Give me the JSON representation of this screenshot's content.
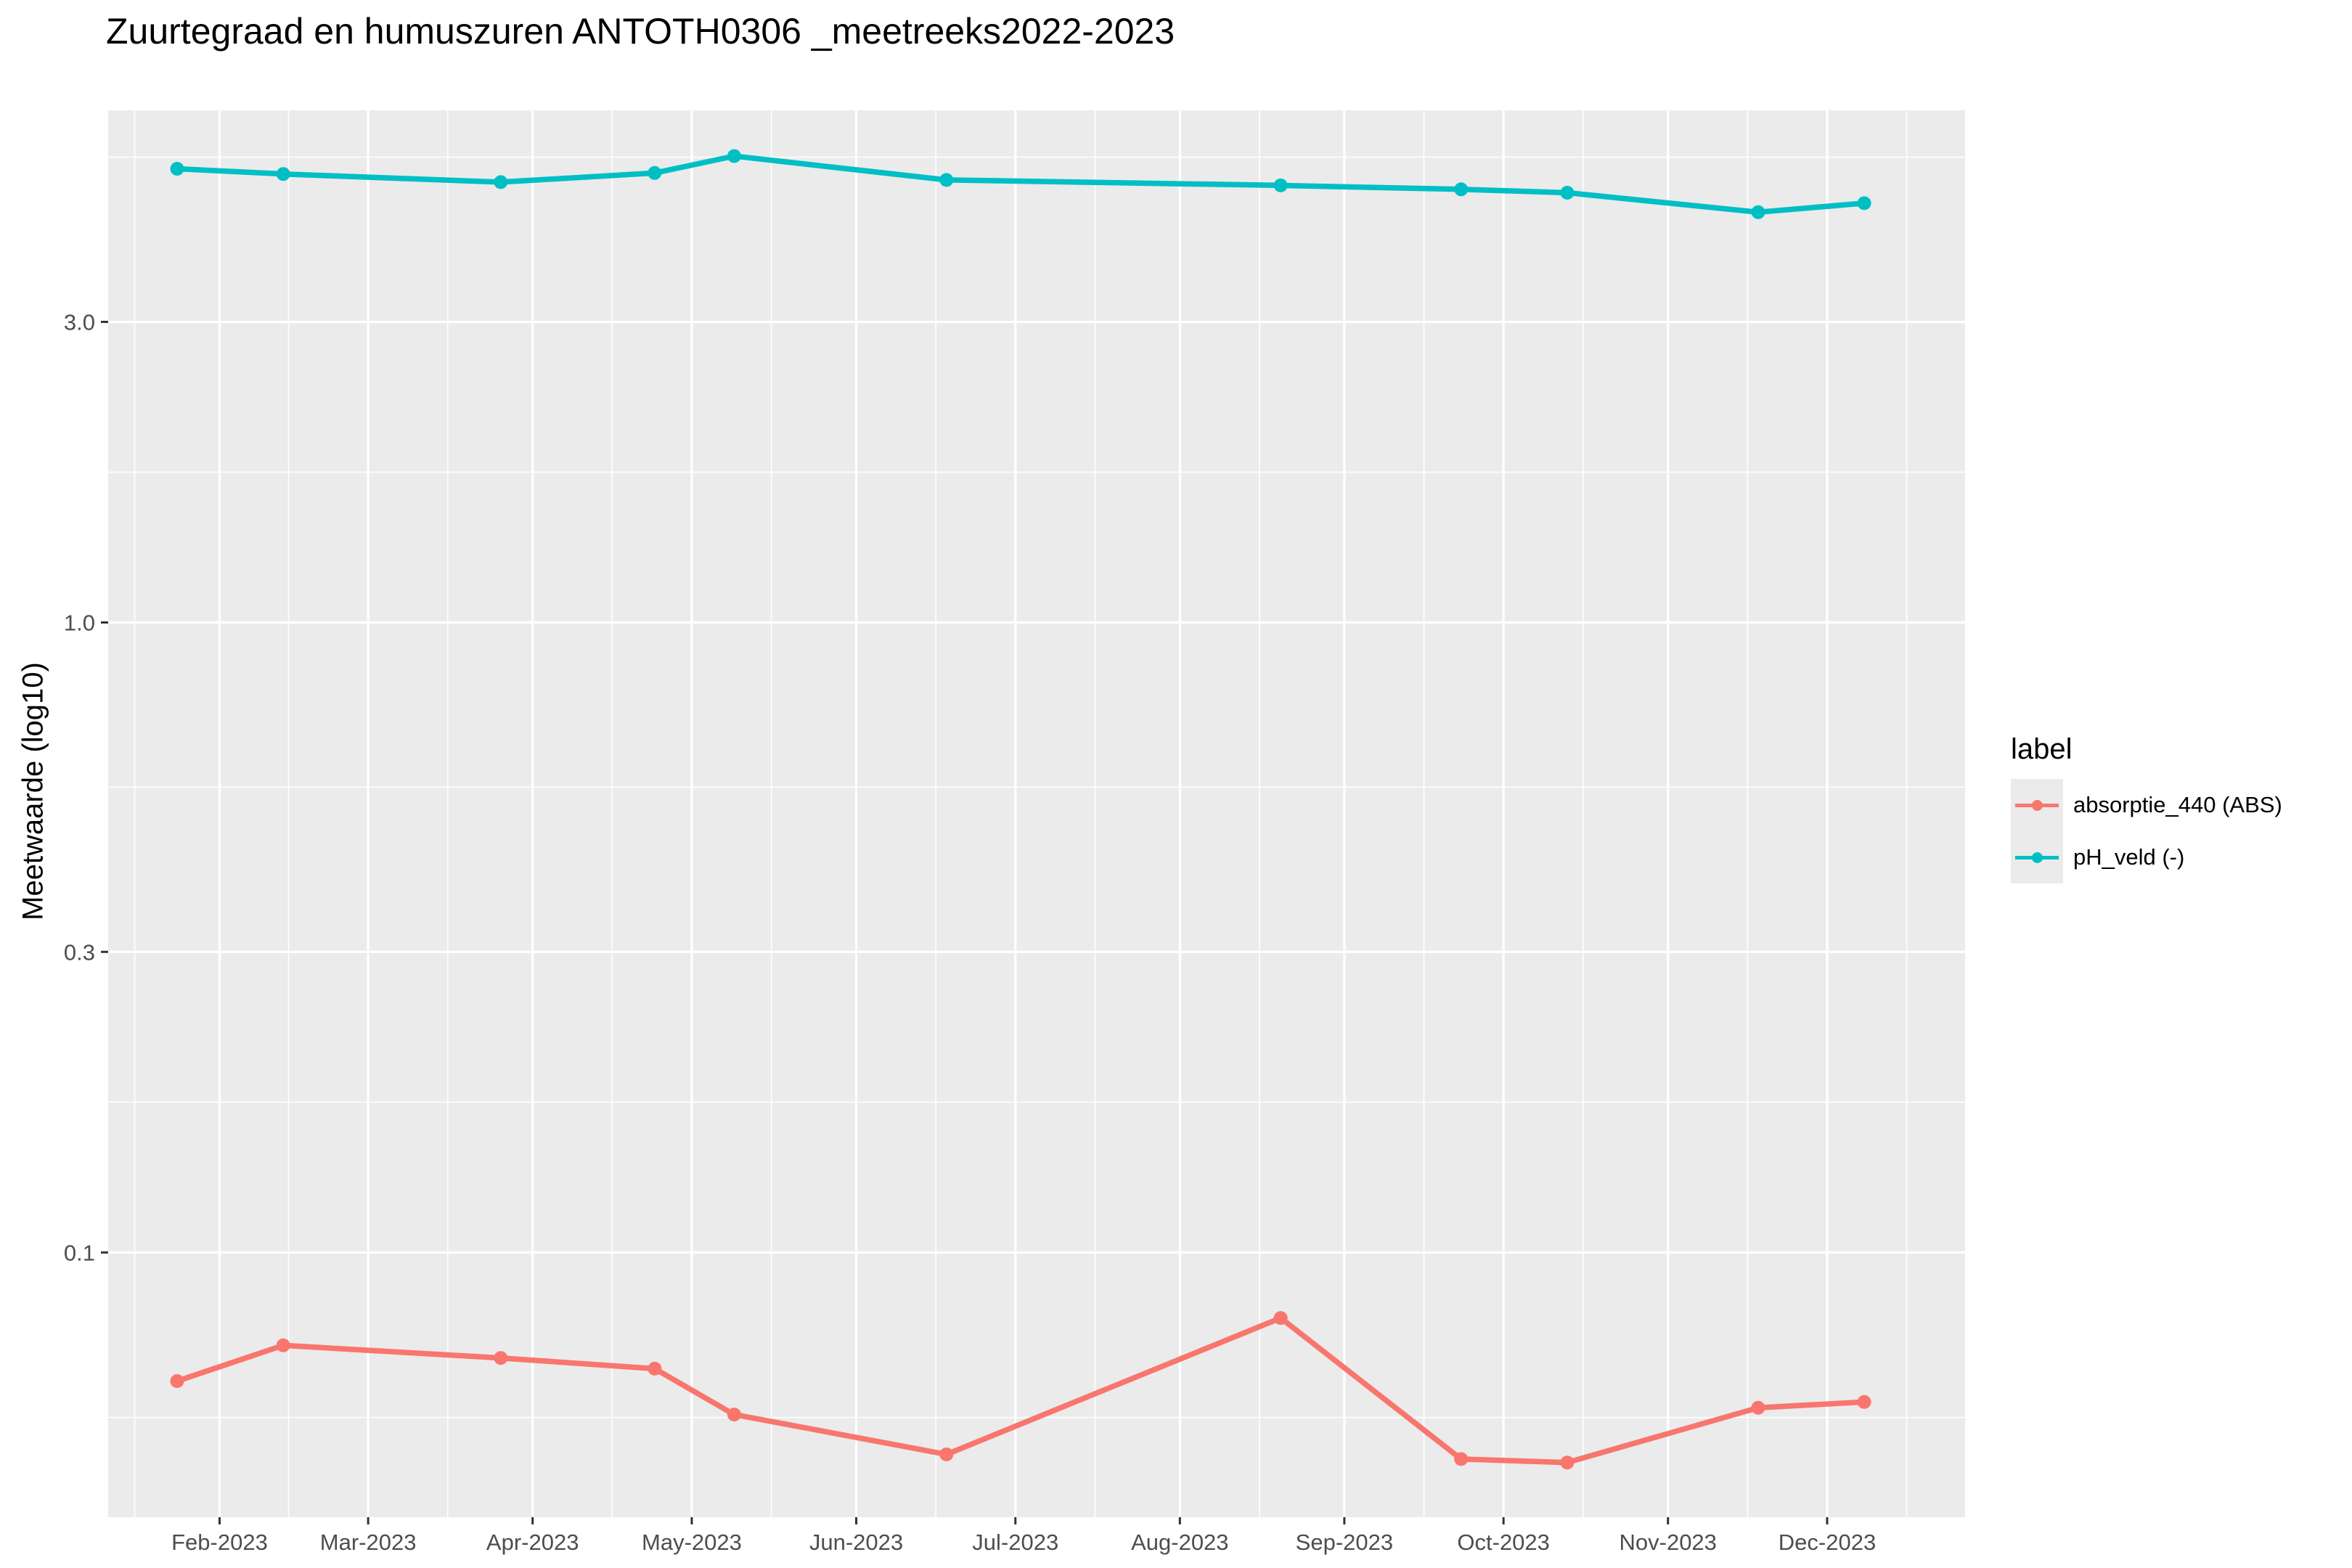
{
  "chart_data": {
    "type": "line",
    "title": "Zuurtegraad en humuszuren ANTOTH0306 _meetreeks2022-2023",
    "xlabel": "",
    "ylabel": "Meetwaarde (log10)",
    "y_scale": "log10",
    "ylim": [
      0.038,
      6.5
    ],
    "y_ticks": [
      0.1,
      0.3,
      1.0,
      3.0
    ],
    "y_tick_labels": [
      "0.1",
      "0.3",
      "1.0",
      "3.0"
    ],
    "y_minor_ticks": [
      0.0547,
      0.1732,
      0.5477,
      1.7321,
      5.477
    ],
    "xlim": [
      "2023-01-11",
      "2023-12-27"
    ],
    "x_ticks": [
      "2023-02-01",
      "2023-03-01",
      "2023-04-01",
      "2023-05-01",
      "2023-06-01",
      "2023-07-01",
      "2023-08-01",
      "2023-09-01",
      "2023-10-01",
      "2023-11-01",
      "2023-12-01"
    ],
    "x_tick_labels": [
      "Feb-2023",
      "Mar-2023",
      "Apr-2023",
      "May-2023",
      "Jun-2023",
      "Jul-2023",
      "Aug-2023",
      "Sep-2023",
      "Oct-2023",
      "Nov-2023",
      "Dec-2023"
    ],
    "x_minor_ticks": [
      "2023-01-16",
      "2023-02-14",
      "2023-03-16",
      "2023-04-16",
      "2023-05-16",
      "2023-06-16",
      "2023-07-16",
      "2023-08-16",
      "2023-09-16",
      "2023-10-16",
      "2023-11-16",
      "2023-12-16"
    ],
    "grid": true,
    "legend": {
      "title": "label",
      "position": "right"
    },
    "x": [
      "2023-01-24",
      "2023-02-13",
      "2023-03-26",
      "2023-04-24",
      "2023-05-09",
      "2023-06-18",
      "2023-08-20",
      "2023-09-23",
      "2023-10-13",
      "2023-11-18",
      "2023-12-08"
    ],
    "series": [
      {
        "name": "absorptie_440 (ABS)",
        "color": "#F8766D",
        "values": [
          0.0625,
          0.0712,
          0.068,
          0.0654,
          0.0553,
          0.0478,
          0.0787,
          0.047,
          0.0464,
          0.0567,
          0.0579
        ]
      },
      {
        "name": "pH_veld (-)",
        "color": "#00BFC4",
        "values": [
          5.25,
          5.15,
          5.0,
          5.17,
          5.5,
          5.04,
          4.94,
          4.87,
          4.81,
          4.48,
          4.63
        ]
      }
    ]
  }
}
